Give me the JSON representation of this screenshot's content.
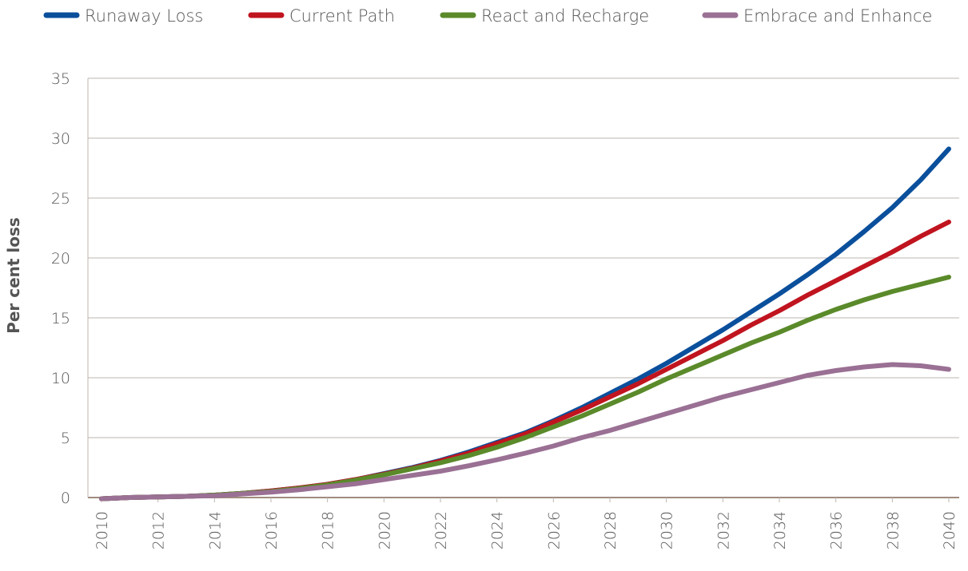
{
  "chart_data": {
    "type": "line",
    "ylabel": "Per cent loss",
    "x": [
      2010,
      2011,
      2012,
      2013,
      2014,
      2015,
      2016,
      2017,
      2018,
      2019,
      2020,
      2021,
      2022,
      2023,
      2024,
      2025,
      2026,
      2027,
      2028,
      2029,
      2030,
      2031,
      2032,
      2033,
      2034,
      2035,
      2036,
      2037,
      2038,
      2039,
      2040
    ],
    "xlim": [
      2010,
      2040
    ],
    "xticks": [
      2010,
      2012,
      2014,
      2016,
      2018,
      2020,
      2022,
      2024,
      2026,
      2028,
      2030,
      2032,
      2034,
      2036,
      2038,
      2040
    ],
    "ylim": [
      0,
      35
    ],
    "yticks": [
      0,
      5,
      10,
      15,
      20,
      25,
      30,
      35
    ],
    "grid": true,
    "legend": "top",
    "series": [
      {
        "name": "Runaway Loss",
        "color": "#0a4f9c",
        "values": [
          -0.1,
          0,
          0.05,
          0.1,
          0.2,
          0.35,
          0.55,
          0.8,
          1.1,
          1.5,
          2.0,
          2.5,
          3.1,
          3.8,
          4.6,
          5.4,
          6.4,
          7.5,
          8.7,
          9.9,
          11.2,
          12.6,
          14.0,
          15.5,
          17.0,
          18.6,
          20.3,
          22.2,
          24.2,
          26.5,
          29.1
        ]
      },
      {
        "name": "Current Path",
        "color": "#c0141f",
        "values": [
          -0.1,
          0,
          0.05,
          0.1,
          0.2,
          0.35,
          0.55,
          0.8,
          1.1,
          1.5,
          1.95,
          2.45,
          3.05,
          3.7,
          4.5,
          5.3,
          6.3,
          7.3,
          8.4,
          9.5,
          10.7,
          11.9,
          13.1,
          14.4,
          15.6,
          16.9,
          18.1,
          19.3,
          20.5,
          21.8,
          23.0
        ]
      },
      {
        "name": "React and Recharge",
        "color": "#5a8a2a",
        "values": [
          -0.1,
          0,
          0.05,
          0.1,
          0.2,
          0.35,
          0.5,
          0.75,
          1.05,
          1.45,
          1.9,
          2.4,
          2.9,
          3.5,
          4.2,
          5.0,
          5.9,
          6.8,
          7.8,
          8.8,
          9.9,
          10.9,
          11.9,
          12.9,
          13.8,
          14.8,
          15.7,
          16.5,
          17.2,
          17.8,
          18.4
        ]
      },
      {
        "name": "Embrace and Enhance",
        "color": "#9a7094",
        "values": [
          -0.1,
          0,
          0.05,
          0.1,
          0.15,
          0.3,
          0.45,
          0.65,
          0.9,
          1.15,
          1.5,
          1.85,
          2.2,
          2.65,
          3.15,
          3.7,
          4.3,
          5.0,
          5.6,
          6.3,
          7.0,
          7.7,
          8.4,
          9.0,
          9.6,
          10.2,
          10.6,
          10.9,
          11.1,
          11.0,
          10.7
        ]
      }
    ]
  }
}
